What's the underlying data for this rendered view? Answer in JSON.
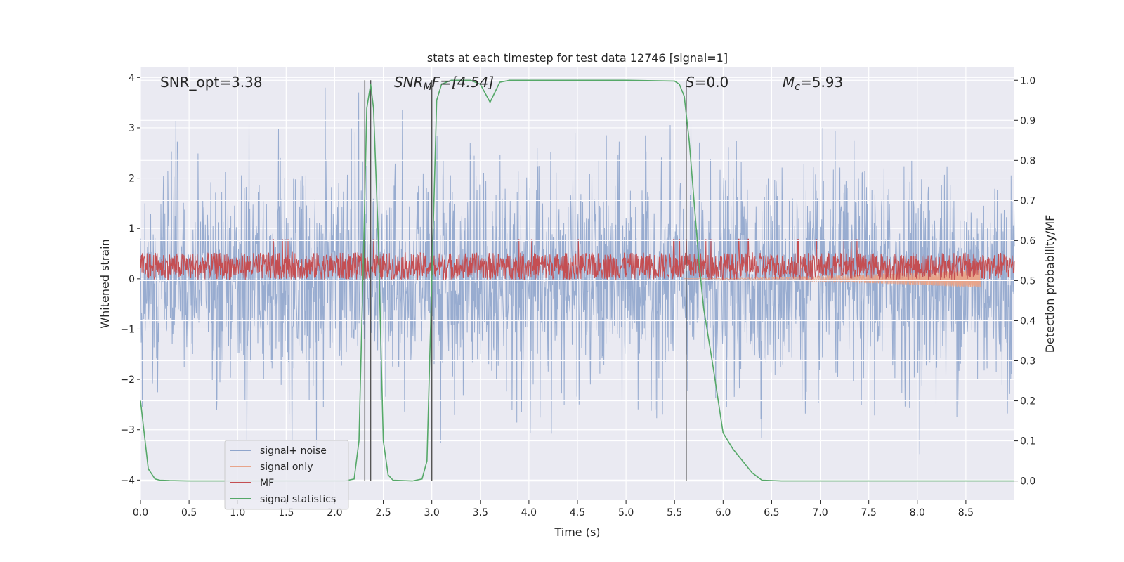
{
  "chart_data": {
    "type": "line",
    "title": "stats at each timestep for test data 12746 [signal=1]",
    "xlabel": "Time (s)",
    "ylabel_left": "Whitened strain",
    "ylabel_right": "Detection probability/MF",
    "xlim": [
      0.0,
      9.0
    ],
    "ylim_left": [
      -4.4,
      4.2
    ],
    "ylim_right": [
      -0.048,
      1.032
    ],
    "xticks": [
      "0.0",
      "0.5",
      "1.0",
      "1.5",
      "2.0",
      "2.5",
      "3.0",
      "3.5",
      "4.0",
      "4.5",
      "5.0",
      "5.5",
      "6.0",
      "6.5",
      "7.0",
      "7.5",
      "8.0",
      "8.5"
    ],
    "yticks_left": [
      "−4",
      "−3",
      "−2",
      "−1",
      "0",
      "1",
      "2",
      "3",
      "4"
    ],
    "yticks_right": [
      "0.0",
      "0.1",
      "0.2",
      "0.3",
      "0.4",
      "0.5",
      "0.6",
      "0.7",
      "0.8",
      "0.9",
      "1.0"
    ],
    "grid": true,
    "legend_position": "lower-left",
    "annotations": {
      "snr_opt": "SNR_opt=3.38",
      "snr_mf_main": "SNR",
      "snr_mf_sub": "M",
      "snr_mf_rest": "F=[4.54]",
      "s_italic": "S",
      "s_rest": "=0.0",
      "mc_main": "M",
      "mc_sub": "c",
      "mc_rest": "=5.93"
    },
    "vertical_markers_s": [
      2.31,
      2.37,
      3.0,
      5.62
    ],
    "series": [
      {
        "name": "signal+ noise",
        "axis": "left",
        "color": "#8fa5cc",
        "description_envelope": {
          "upper_typical": 2.0,
          "upper_max": 3.8,
          "lower_typical": -2.0,
          "lower_min": -3.8
        }
      },
      {
        "name": "signal only",
        "axis": "left",
        "color": "#e8a48a",
        "chirp": {
          "start_s": 5.6,
          "end_s": 8.65,
          "max_amplitude": 0.18
        }
      },
      {
        "name": "MF",
        "axis": "left",
        "color": "#c44e52",
        "band": {
          "mean": 0.25,
          "amplitude": 0.45,
          "max": 1.0
        }
      },
      {
        "name": "signal statistics",
        "axis": "right",
        "color": "#55a868",
        "x": [
          0.0,
          0.08,
          0.15,
          0.2,
          0.3,
          0.5,
          1.0,
          1.5,
          2.0,
          2.1,
          2.2,
          2.25,
          2.3,
          2.33,
          2.37,
          2.4,
          2.45,
          2.5,
          2.55,
          2.6,
          2.8,
          2.9,
          2.95,
          3.0,
          3.05,
          3.1,
          3.2,
          3.3,
          3.4,
          3.5,
          3.6,
          3.65,
          3.7,
          3.8,
          4.0,
          4.5,
          5.0,
          5.5,
          5.55,
          5.6,
          5.65,
          5.7,
          5.75,
          5.8,
          5.9,
          6.0,
          6.1,
          6.2,
          6.3,
          6.4,
          6.6,
          7.0,
          8.0,
          9.0
        ],
        "y": [
          0.2,
          0.03,
          0.005,
          0.002,
          0.001,
          0.0,
          0.0,
          0.0,
          0.0,
          0.0,
          0.005,
          0.1,
          0.6,
          0.93,
          0.99,
          0.93,
          0.6,
          0.1,
          0.015,
          0.002,
          0.0,
          0.005,
          0.05,
          0.5,
          0.95,
          0.99,
          1.0,
          1.0,
          1.0,
          0.99,
          0.945,
          0.97,
          0.995,
          1.0,
          1.0,
          1.0,
          1.0,
          0.998,
          0.99,
          0.96,
          0.85,
          0.7,
          0.55,
          0.43,
          0.28,
          0.12,
          0.08,
          0.05,
          0.02,
          0.002,
          0.0,
          0.0,
          0.0,
          0.0
        ]
      }
    ]
  }
}
